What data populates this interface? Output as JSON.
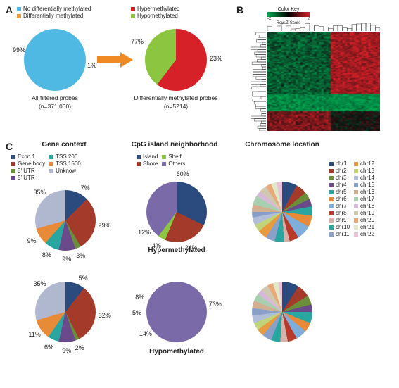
{
  "panel_labels": {
    "a": "A",
    "b": "B",
    "c": "C"
  },
  "panelA": {
    "legend_left": [
      {
        "label": "No differentially methylated",
        "color": "#4fb9e3"
      },
      {
        "label": "Differentially methylated",
        "color": "#e89b3e"
      }
    ],
    "legend_right": [
      {
        "label": "Hypermethylated",
        "color": "#d62128"
      },
      {
        "label": "Hypomethylated",
        "color": "#8cc640"
      }
    ],
    "pie1": {
      "title": "All filtered probes",
      "n_label": "(n=371,000)",
      "slices": [
        {
          "value": 99,
          "label": "99%",
          "color": "#4fb9e3"
        },
        {
          "value": 1,
          "label": "1%",
          "color": "#e89b3e"
        }
      ]
    },
    "pie2": {
      "title": "Differentially methylated probes",
      "n_label": "(n=5214)",
      "slices": [
        {
          "value": 77,
          "label": "77%",
          "color": "#d62128"
        },
        {
          "value": 23,
          "label": "23%",
          "color": "#8cc640"
        }
      ]
    },
    "arrow_color": "#f08a24"
  },
  "panelB": {
    "colorkey_title": "Color Key",
    "row_z_label": "Row Z-Score",
    "scale_ticks": [
      "-2",
      "2"
    ],
    "gradient": [
      "#00a651",
      "#000000",
      "#d62128"
    ],
    "heatmap_bg": "#101010",
    "dendro_color": "#000000"
  },
  "panelC": {
    "col_titles": {
      "gene": "Gene context",
      "cpg": "CpG island neighborhood",
      "chr": "Chromosome location"
    },
    "row_titles": {
      "hyper": "Hypermethylated",
      "hypo": "Hypomethylated"
    },
    "gene_legend": [
      {
        "label": "Exon 1",
        "color": "#2b4a7e"
      },
      {
        "label": "TSS 200",
        "color": "#2aa6a0"
      },
      {
        "label": "Gene body",
        "color": "#a43a2a"
      },
      {
        "label": "TSS 1500",
        "color": "#e88b38"
      },
      {
        "label": "3' UTR",
        "color": "#6b8e3a"
      },
      {
        "label": "Unknow",
        "color": "#b0b8d0"
      },
      {
        "label": "5' UTR",
        "color": "#6a4a8a"
      }
    ],
    "cpg_legend": [
      {
        "label": "Island",
        "color": "#2b4a7e"
      },
      {
        "label": "Shelf",
        "color": "#8cc640"
      },
      {
        "label": "Shore",
        "color": "#a43a2a"
      },
      {
        "label": "Others",
        "color": "#7a6aa8"
      }
    ],
    "chr_legend": [
      {
        "label": "chr1",
        "color": "#2b4a7e"
      },
      {
        "label": "chr12",
        "color": "#e89b3e"
      },
      {
        "label": "chr2",
        "color": "#a43a2a"
      },
      {
        "label": "chr13",
        "color": "#c0d47a"
      },
      {
        "label": "chr3",
        "color": "#6b8e3a"
      },
      {
        "label": "chr14",
        "color": "#b0beda"
      },
      {
        "label": "chr4",
        "color": "#6a4a8a"
      },
      {
        "label": "chr15",
        "color": "#8aa0c8"
      },
      {
        "label": "chr5",
        "color": "#2aa6a0"
      },
      {
        "label": "chr16",
        "color": "#d0b090"
      },
      {
        "label": "chr6",
        "color": "#e88b38"
      },
      {
        "label": "chr17",
        "color": "#a8d0b0"
      },
      {
        "label": "chr7",
        "color": "#7faedc"
      },
      {
        "label": "chr18",
        "color": "#d8b8d8"
      },
      {
        "label": "chr8",
        "color": "#b83a2a"
      },
      {
        "label": "chr19",
        "color": "#d0c8b0"
      },
      {
        "label": "chr9",
        "color": "#d8b0aa"
      },
      {
        "label": "chr20",
        "color": "#e8a878"
      },
      {
        "label": "chr10",
        "color": "#2aa6a0"
      },
      {
        "label": "chr21",
        "color": "#e0e8c8"
      },
      {
        "label": "chr11",
        "color": "#8aa0c8"
      },
      {
        "label": "chr22",
        "color": "#e8c0d8"
      }
    ],
    "gene_hyper": [
      {
        "value": 7,
        "label": "7%",
        "color": "#2b4a7e"
      },
      {
        "value": 29,
        "label": "29%",
        "color": "#a43a2a"
      },
      {
        "value": 3,
        "label": "3%",
        "color": "#6b8e3a"
      },
      {
        "value": 9,
        "label": "9%",
        "color": "#6a4a8a"
      },
      {
        "value": 8,
        "label": "8%",
        "color": "#2aa6a0"
      },
      {
        "value": 9,
        "label": "9%",
        "color": "#e88b38"
      },
      {
        "value": 35,
        "label": "35%",
        "color": "#b0b8d0"
      }
    ],
    "gene_hypo": [
      {
        "value": 5,
        "label": "5%",
        "color": "#2b4a7e"
      },
      {
        "value": 32,
        "label": "32%",
        "color": "#a43a2a"
      },
      {
        "value": 2,
        "label": "2%",
        "color": "#6b8e3a"
      },
      {
        "value": 9,
        "label": "9%",
        "color": "#6a4a8a"
      },
      {
        "value": 6,
        "label": "6%",
        "color": "#2aa6a0"
      },
      {
        "value": 11,
        "label": "11%",
        "color": "#e88b38"
      },
      {
        "value": 35,
        "label": "35%",
        "color": "#b0b8d0"
      }
    ],
    "cpg_hyper": [
      {
        "value": 60,
        "label": "60%",
        "color": "#2b4a7e"
      },
      {
        "value": 24,
        "label": "24%",
        "color": "#a43a2a"
      },
      {
        "value": 4,
        "label": "4%",
        "color": "#8cc640"
      },
      {
        "value": 12,
        "label": "12%",
        "color": "#7a6aa8"
      }
    ],
    "cpg_hypo": [
      {
        "value": 14,
        "label": "14%",
        "color": "#2b4a7e"
      },
      {
        "value": 5,
        "label": "5%",
        "color": "#a43a2a"
      },
      {
        "value": 8,
        "label": "8%",
        "color": "#8cc640"
      },
      {
        "value": 73,
        "label": "73%",
        "color": "#7a6aa8"
      }
    ],
    "chr_hyper": [
      {
        "value": 8,
        "color": "#2b4a7e"
      },
      {
        "value": 6,
        "color": "#a43a2a"
      },
      {
        "value": 4,
        "color": "#6b8e3a"
      },
      {
        "value": 4,
        "color": "#6a4a8a"
      },
      {
        "value": 5,
        "color": "#2aa6a0"
      },
      {
        "value": 6,
        "color": "#e88b38"
      },
      {
        "value": 8,
        "color": "#7faedc"
      },
      {
        "value": 5,
        "color": "#b83a2a"
      },
      {
        "value": 3,
        "color": "#d8b0aa"
      },
      {
        "value": 5,
        "color": "#2aa6a0"
      },
      {
        "value": 5,
        "color": "#8aa0c8"
      },
      {
        "value": 5,
        "color": "#e89b3e"
      },
      {
        "value": 4,
        "color": "#c0d47a"
      },
      {
        "value": 4,
        "color": "#b0beda"
      },
      {
        "value": 3,
        "color": "#8aa0c8"
      },
      {
        "value": 4,
        "color": "#d0b090"
      },
      {
        "value": 5,
        "color": "#a8d0b0"
      },
      {
        "value": 3,
        "color": "#d8b8d8"
      },
      {
        "value": 4,
        "color": "#d0c8b0"
      },
      {
        "value": 3,
        "color": "#e8a878"
      },
      {
        "value": 3,
        "color": "#e0e8c8"
      },
      {
        "value": 3,
        "color": "#e8c0d8"
      }
    ],
    "chr_hypo": [
      {
        "value": 9,
        "color": "#2b4a7e"
      },
      {
        "value": 7,
        "color": "#a43a2a"
      },
      {
        "value": 5,
        "color": "#6b8e3a"
      },
      {
        "value": 4,
        "color": "#6a4a8a"
      },
      {
        "value": 6,
        "color": "#2aa6a0"
      },
      {
        "value": 5,
        "color": "#e88b38"
      },
      {
        "value": 6,
        "color": "#7faedc"
      },
      {
        "value": 5,
        "color": "#b83a2a"
      },
      {
        "value": 4,
        "color": "#d8b0aa"
      },
      {
        "value": 5,
        "color": "#2aa6a0"
      },
      {
        "value": 5,
        "color": "#8aa0c8"
      },
      {
        "value": 4,
        "color": "#e89b3e"
      },
      {
        "value": 4,
        "color": "#c0d47a"
      },
      {
        "value": 4,
        "color": "#b0beda"
      },
      {
        "value": 4,
        "color": "#8aa0c8"
      },
      {
        "value": 4,
        "color": "#d0b090"
      },
      {
        "value": 4,
        "color": "#a8d0b0"
      },
      {
        "value": 3,
        "color": "#d8b8d8"
      },
      {
        "value": 4,
        "color": "#d0c8b0"
      },
      {
        "value": 3,
        "color": "#e8a878"
      },
      {
        "value": 3,
        "color": "#e0e8c8"
      },
      {
        "value": 2,
        "color": "#e8c0d8"
      }
    ]
  }
}
